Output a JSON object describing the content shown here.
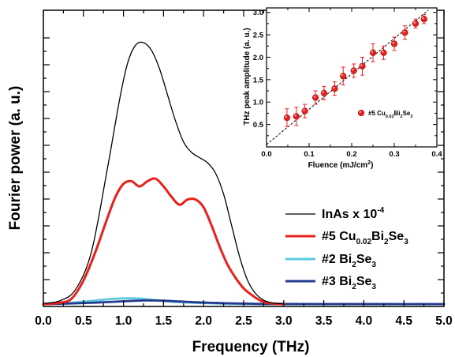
{
  "chart_data": [
    {
      "type": "line",
      "xlabel": "Frequency (THz)",
      "ylabel": "Fourier power (a. u.)",
      "xlim": [
        0.0,
        5.0
      ],
      "xtick_labels": [
        "0.0",
        "0.5",
        "1.0",
        "1.5",
        "2.0",
        "2.5",
        "3.0",
        "3.5",
        "4.0",
        "4.5",
        "5.0"
      ],
      "y_tick_labels_shown": false,
      "legend_position": "lower right",
      "series": [
        {
          "name": "InAs x 10",
          "name_superscript": "-4",
          "color": "#000000",
          "x": [
            0.0,
            0.2,
            0.4,
            0.6,
            0.8,
            0.95,
            1.05,
            1.15,
            1.25,
            1.35,
            1.45,
            1.55,
            1.65,
            1.75,
            1.85,
            1.95,
            2.05,
            2.15,
            2.25,
            2.35,
            2.45,
            2.55,
            2.65,
            2.75,
            2.85,
            3.0
          ],
          "values": [
            0.3,
            1.2,
            5.5,
            20,
            52,
            78,
            92,
            99,
            100,
            97,
            90,
            80,
            70,
            62,
            58,
            56,
            54,
            50,
            42,
            30,
            18,
            9,
            4,
            1.5,
            0.5,
            0.1
          ]
        },
        {
          "name_parts": [
            [
              "#5 Cu",
              ""
            ],
            [
              "0.02",
              "sub"
            ],
            [
              "Bi",
              ""
            ],
            [
              "2",
              "sub"
            ],
            [
              "Se",
              ""
            ],
            [
              "3",
              "sub"
            ]
          ],
          "color": "#e8201c",
          "x": [
            0.0,
            0.2,
            0.35,
            0.5,
            0.65,
            0.8,
            0.9,
            1.0,
            1.1,
            1.2,
            1.3,
            1.4,
            1.5,
            1.6,
            1.7,
            1.8,
            1.9,
            2.0,
            2.1,
            2.2,
            2.3,
            2.4,
            2.5,
            2.6,
            2.7,
            2.8,
            3.0
          ],
          "values": [
            0,
            0.5,
            2,
            9,
            20,
            33,
            41,
            46,
            47,
            45,
            47,
            48,
            45,
            41,
            38,
            40,
            40,
            37,
            30,
            22,
            15,
            10,
            6,
            3.5,
            1.5,
            0.4,
            0
          ]
        },
        {
          "name_parts": [
            [
              "#2 Bi",
              ""
            ],
            [
              "2",
              "sub"
            ],
            [
              "Se",
              ""
            ],
            [
              "3",
              "sub"
            ]
          ],
          "color": "#5bc8e0",
          "x": [
            0.0,
            0.3,
            0.6,
            0.8,
            1.0,
            1.2,
            1.4,
            1.6,
            1.8,
            2.0,
            2.2,
            2.5,
            3.0,
            5.0
          ],
          "values": [
            0,
            0.4,
            1.2,
            1.8,
            2.2,
            2.1,
            1.5,
            0.9,
            0.6,
            0.4,
            0.2,
            0.1,
            0,
            0
          ]
        },
        {
          "name_parts": [
            [
              "#3 Bi",
              ""
            ],
            [
              "2",
              "sub"
            ],
            [
              "Se",
              ""
            ],
            [
              "3",
              "sub"
            ]
          ],
          "color": "#233a8f",
          "x": [
            0.0,
            0.3,
            0.6,
            0.9,
            1.1,
            1.3,
            1.5,
            1.7,
            1.9,
            2.1,
            2.3,
            2.6,
            3.0,
            5.0
          ],
          "values": [
            0,
            0.2,
            0.5,
            0.9,
            1.2,
            1.4,
            1.3,
            1.0,
            0.7,
            0.5,
            0.3,
            0.15,
            0.05,
            0
          ]
        }
      ]
    },
    {
      "type": "scatter",
      "xlabel": "Fluence (mJ/cm",
      "xlabel_sup": "2",
      "xlabel_end": ")",
      "ylabel": "THz peak amplitude (a. u.)",
      "xlim": [
        0.0,
        0.4
      ],
      "ylim": [
        0.0,
        3.1
      ],
      "xtick_labels": [
        "0.0",
        "0.1",
        "0.2",
        "0.3",
        "0.4"
      ],
      "ytick_labels": [
        "0.5",
        "1.0",
        "1.5",
        "2.0",
        "2.5",
        "3.0"
      ],
      "legend_position": "right",
      "series": [
        {
          "name_parts": [
            [
              "#5 Cu",
              ""
            ],
            [
              "0.02",
              "sub"
            ],
            [
              "Bi",
              ""
            ],
            [
              "2",
              "sub"
            ],
            [
              "Se",
              ""
            ],
            [
              "3",
              "sub"
            ]
          ],
          "color": "#e8201c",
          "x": [
            0.048,
            0.07,
            0.09,
            0.115,
            0.135,
            0.16,
            0.18,
            0.205,
            0.225,
            0.25,
            0.275,
            0.3,
            0.325,
            0.35,
            0.37
          ],
          "values": [
            0.65,
            0.68,
            0.8,
            1.1,
            1.2,
            1.3,
            1.58,
            1.7,
            1.8,
            2.1,
            2.1,
            2.3,
            2.55,
            2.75,
            2.85
          ],
          "errors": [
            0.2,
            0.2,
            0.15,
            0.15,
            0.15,
            0.15,
            0.2,
            0.15,
            0.2,
            0.2,
            0.15,
            0.15,
            0.15,
            0.1,
            0.1
          ]
        }
      ],
      "fit_line": {
        "style": "dashed",
        "color": "#000000",
        "x": [
          0.0,
          0.38
        ],
        "values": [
          0.05,
          3.05
        ]
      }
    }
  ]
}
